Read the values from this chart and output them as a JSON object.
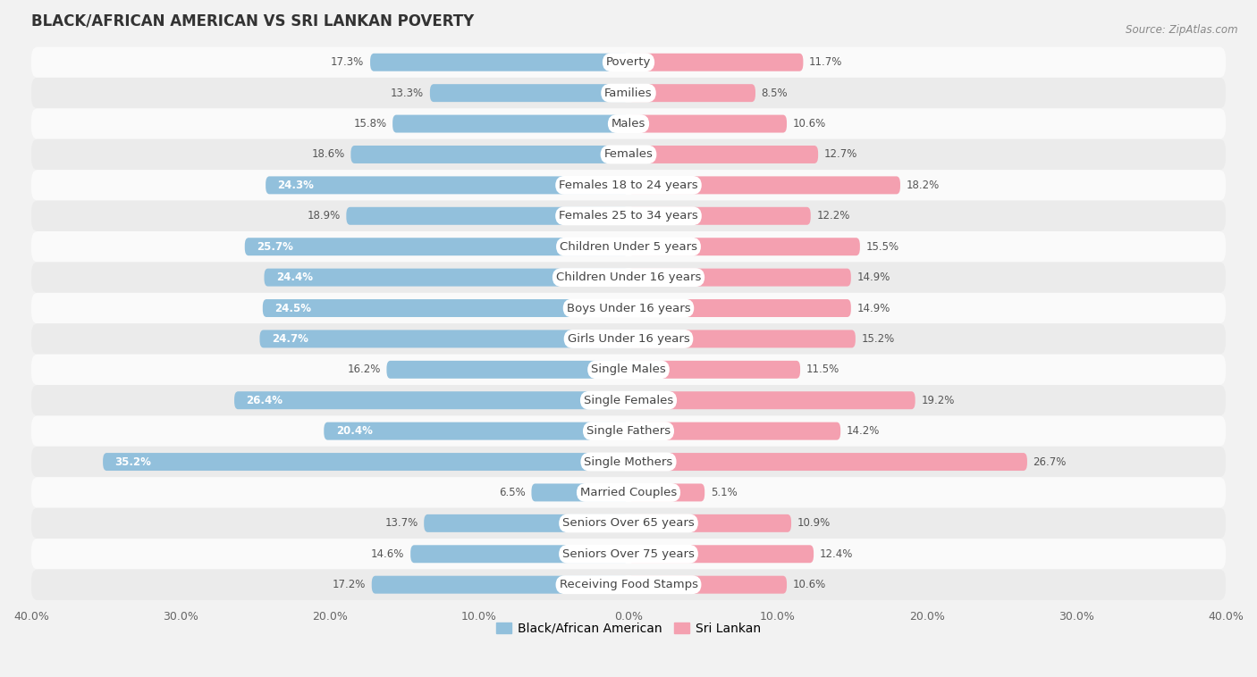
{
  "title": "BLACK/AFRICAN AMERICAN VS SRI LANKAN POVERTY",
  "source": "Source: ZipAtlas.com",
  "categories": [
    "Poverty",
    "Families",
    "Males",
    "Females",
    "Females 18 to 24 years",
    "Females 25 to 34 years",
    "Children Under 5 years",
    "Children Under 16 years",
    "Boys Under 16 years",
    "Girls Under 16 years",
    "Single Males",
    "Single Females",
    "Single Fathers",
    "Single Mothers",
    "Married Couples",
    "Seniors Over 65 years",
    "Seniors Over 75 years",
    "Receiving Food Stamps"
  ],
  "black_values": [
    17.3,
    13.3,
    15.8,
    18.6,
    24.3,
    18.9,
    25.7,
    24.4,
    24.5,
    24.7,
    16.2,
    26.4,
    20.4,
    35.2,
    6.5,
    13.7,
    14.6,
    17.2
  ],
  "sri_lankan_values": [
    11.7,
    8.5,
    10.6,
    12.7,
    18.2,
    12.2,
    15.5,
    14.9,
    14.9,
    15.2,
    11.5,
    19.2,
    14.2,
    26.7,
    5.1,
    10.9,
    12.4,
    10.6
  ],
  "black_color": "#92C0DC",
  "sri_lankan_color": "#F4A0B0",
  "background_color": "#F2F2F2",
  "row_color_light": "#FAFAFA",
  "row_color_dark": "#EBEBEB",
  "axis_limit": 40.0,
  "bar_height": 0.58,
  "title_fontsize": 12,
  "label_fontsize": 9.5,
  "value_fontsize": 8.5,
  "legend_fontsize": 10,
  "label_bg_color": "#FFFFFF",
  "label_text_color": "#444444",
  "value_inside_color": "#FFFFFF",
  "value_outside_color": "#555555"
}
